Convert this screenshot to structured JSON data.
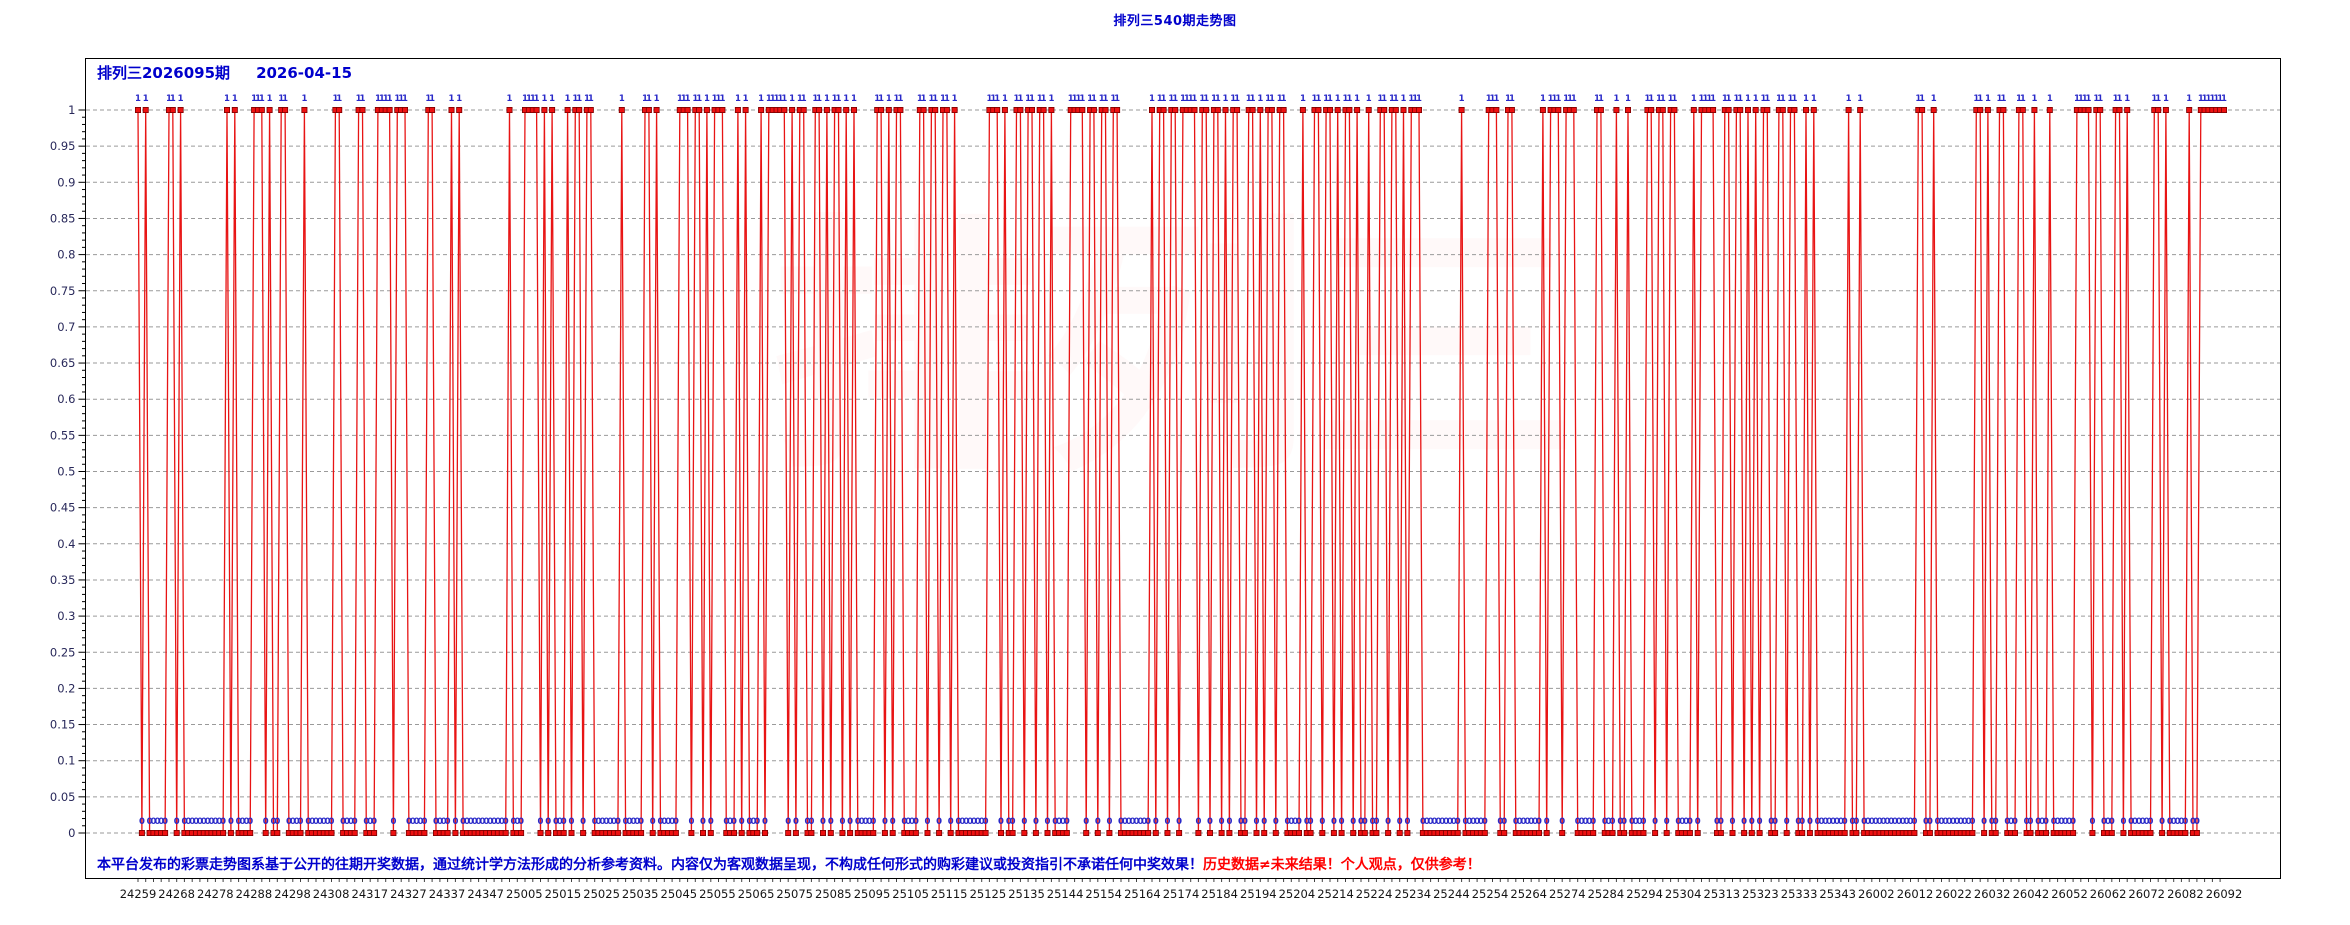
{
  "page_title": "排列三540期走势图",
  "chart": {
    "header": {
      "issue_label": "排列三2026095期",
      "date": "2026-04-15"
    },
    "watermark": "排列三",
    "disclaimer": {
      "blue": "本平台发布的彩票走势图系基于公开的往期开奖数据，通过统计学方法形成的分析参考资料。内容仅为客观数据呈现，不构成任何形式的购彩建议或投资指引不承诺任何中奖效果！",
      "red": "历史数据≠未来结果！个人观点，仅供参考！"
    }
  },
  "chart_data": {
    "type": "line",
    "title": "排列三540期走势图",
    "subtitle": "排列三2026095期 2026-04-15",
    "ylim": [
      0,
      1
    ],
    "y_tick_step": 0.05,
    "y_tick_labels": [
      "1",
      "0.95",
      "0.9",
      "0.85",
      "0.8",
      "0.75",
      "0.7",
      "0.65",
      "0.6",
      "0.55",
      "0.5",
      "0.45",
      "0.4",
      "0.35",
      "0.3",
      "0.25",
      "0.2",
      "0.15",
      "0.1",
      "0.05",
      "0"
    ],
    "x_labels": [
      "24259",
      "24268",
      "24278",
      "24288",
      "24298",
      "24308",
      "24317",
      "24327",
      "24337",
      "24347",
      "25005",
      "25015",
      "25025",
      "25035",
      "25045",
      "25055",
      "25065",
      "25075",
      "25085",
      "25095",
      "25105",
      "25115",
      "25125",
      "25135",
      "25144",
      "25154",
      "25164",
      "25174",
      "25184",
      "25194",
      "25204",
      "25214",
      "25224",
      "25234",
      "25244",
      "25254",
      "25264",
      "25274",
      "25284",
      "25294",
      "25304",
      "25313",
      "25323",
      "25333",
      "25343",
      "26002",
      "26012",
      "26022",
      "26032",
      "26042",
      "26052",
      "26062",
      "26072",
      "26082",
      "26092"
    ],
    "periods": 540,
    "point_label_hit": "1",
    "point_label_miss": "0",
    "values_binary": "101000001101000000000001010000111010011000010000000110000110001111011100000110000101000000000000100011110101000101101100000001000001101000001110110101110001010001011111010110011010110101000001101011000011011011010000000011101001101101101000011110110110110000000010110110111101101101011001101011011000010011011010110100100110110101110000000000100000011100110000000101110111000001100010010000110110110000101111001101101010110011011001010000000010010000000000000011001000000000011010011000110010001000000111101100011010000001101000001001111111",
    "legend": "none",
    "grid": "horizontal dashed every 0.05",
    "colors": {
      "title_blue": "#0000cc",
      "line_red": "#e81414",
      "marker_fill": "#ee1111",
      "marker_stroke": "#7a0000",
      "point_label_blue": "#2929c8",
      "grid_gray": "#9a9a9a",
      "axis_black": "#000000",
      "y_tick_text": "#28285a",
      "x_tick_text": "#141414",
      "warn_red": "#ff0000"
    }
  }
}
